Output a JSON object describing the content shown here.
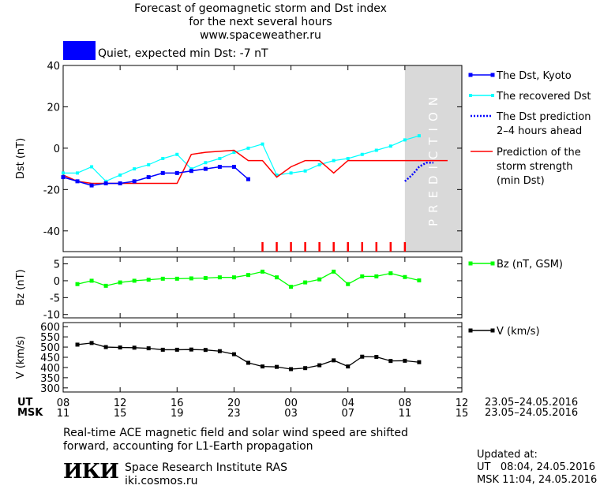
{
  "header": {
    "title_line1": "Forecast of geomagnetic storm and Dst index",
    "title_line2": "for the next several hours",
    "title_line3": "www.spaceweather.ru",
    "status_text": "Quiet, expected min Dst: -7 nT",
    "status_color": "#0000ff"
  },
  "colors": {
    "dst_kyoto": "#0000ff",
    "dst_recovered": "#00ffff",
    "prediction": "#ff0000",
    "bz": "#00ff00",
    "speed": "#000000",
    "prediction_zone": "#d9d9d9"
  },
  "chart_data": [
    {
      "type": "line",
      "ylabel": "Dst (nT)",
      "ylim": [
        -50,
        40
      ],
      "yticks": [
        40,
        20,
        0,
        -20,
        -40
      ],
      "x_unit": "UT hour from 23.05 08:00",
      "xlim": [
        0,
        28
      ],
      "prediction_zone_label": "PREDICTION",
      "prediction_zone_start": 24,
      "series": [
        {
          "name": "The Dst, Kyoto",
          "x": [
            0,
            1,
            2,
            3,
            4,
            5,
            6,
            7,
            8,
            9,
            10,
            11,
            12,
            13
          ],
          "values": [
            -14,
            -16,
            -18,
            -17,
            -17,
            -16,
            -14,
            -12,
            -12,
            -11,
            -10,
            -9,
            -9,
            -15
          ]
        },
        {
          "name": "The recovered Dst",
          "x": [
            0,
            1,
            2,
            3,
            4,
            5,
            6,
            7,
            8,
            9,
            10,
            11,
            12,
            13,
            14,
            15,
            16,
            17,
            18,
            19,
            20,
            21,
            22,
            23,
            24,
            25
          ],
          "values": [
            -12,
            -12,
            -9,
            -16,
            -13,
            -10,
            -8,
            -5,
            -3,
            -10,
            -7,
            -5,
            -2,
            0,
            2,
            -13,
            -12,
            -11,
            -8,
            -6,
            -5,
            -3,
            -1,
            1,
            4,
            6
          ]
        },
        {
          "name": "The Dst prediction\n2–4 hours ahead",
          "x": [
            24,
            24.5,
            25,
            25.5,
            26
          ],
          "values": [
            -16,
            -13,
            -9,
            -7,
            -7
          ]
        },
        {
          "name": "Prediction of the\nstorm strength\n(min Dst)",
          "x": [
            0,
            1,
            2,
            8,
            9,
            10,
            12,
            13,
            14,
            15,
            16,
            17,
            18,
            19,
            20,
            21,
            22,
            23,
            24,
            27
          ],
          "values": [
            -13,
            -16,
            -17,
            -17,
            -3,
            -2,
            -1,
            -6,
            -6,
            -14,
            -9,
            -6,
            -6,
            -12,
            -6,
            -6,
            -6,
            -6,
            -6,
            -6
          ]
        }
      ],
      "tick_marks_x": [
        14,
        15,
        16,
        17,
        18,
        19,
        20,
        21,
        22,
        23,
        24
      ]
    },
    {
      "type": "line",
      "ylabel": "Bz (nT)",
      "ylim": [
        -11,
        7
      ],
      "yticks": [
        5,
        0,
        -5,
        -10
      ],
      "series": [
        {
          "name": "Bz (nT, GSM)",
          "x": [
            1,
            2,
            3,
            4,
            5,
            6,
            7,
            8,
            9,
            10,
            11,
            12,
            13,
            14,
            15,
            16,
            17,
            18,
            19,
            20,
            21,
            22,
            23,
            24,
            25
          ],
          "values": [
            -1,
            0,
            -1.5,
            -0.5,
            0,
            0.3,
            0.6,
            0.6,
            0.7,
            0.8,
            1,
            1,
            1.7,
            2.7,
            1,
            -1.8,
            -0.5,
            0.4,
            2.7,
            -1,
            1.3,
            1.3,
            2.2,
            1.1,
            0.1
          ]
        }
      ]
    },
    {
      "type": "line",
      "ylabel": "V (km/s)",
      "ylim": [
        280,
        620
      ],
      "yticks": [
        600,
        550,
        500,
        450,
        400,
        350,
        300
      ],
      "series": [
        {
          "name": "V (km/s)",
          "x": [
            1,
            2,
            3,
            4,
            5,
            6,
            7,
            8,
            9,
            10,
            11,
            12,
            13,
            14,
            15,
            16,
            17,
            18,
            19,
            20,
            21,
            22,
            23,
            24,
            25
          ],
          "values": [
            512,
            520,
            500,
            498,
            497,
            494,
            487,
            487,
            488,
            486,
            480,
            465,
            423,
            405,
            403,
            392,
            397,
            411,
            435,
            405,
            453,
            452,
            432,
            433,
            426
          ]
        }
      ]
    }
  ],
  "x_axis": {
    "ut_label": "UT",
    "msk_label": "MSK",
    "ut_ticks": [
      "08",
      "12",
      "16",
      "20",
      "00",
      "04",
      "08",
      "12"
    ],
    "msk_ticks": [
      "11",
      "15",
      "19",
      "23",
      "03",
      "07",
      "11",
      "15"
    ],
    "ut_dates": "23.05–24.05.2016",
    "msk_dates": "23.05–24.05.2016"
  },
  "footer": {
    "note_line1": "Real-time ACE magnetic field and solar wind speed are shifted",
    "note_line2": "forward, accounting for L1-Earth propagation",
    "logo_text": "ИКИ",
    "institute": "Space Research Institute RAS",
    "site": "iki.cosmos.ru",
    "updated_label": "Updated at:",
    "updated_ut": "UT   08:04, 24.05.2016",
    "updated_msk": "MSK 11:04, 24.05.2016"
  }
}
